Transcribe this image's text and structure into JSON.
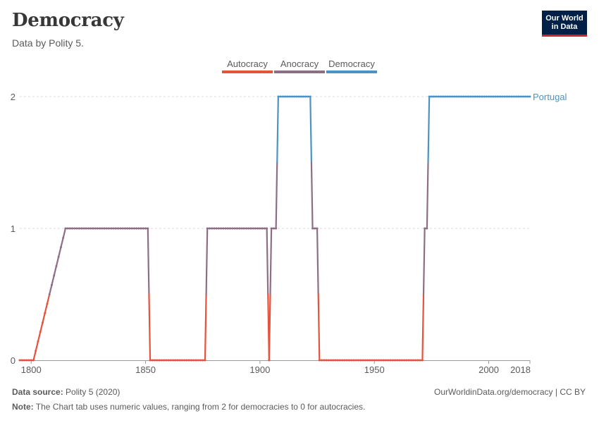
{
  "header": {
    "title": "Democracy",
    "subtitle": "Data by Polity 5."
  },
  "logo": {
    "line1": "Our World",
    "line2": "in Data"
  },
  "footer": {
    "source_label": "Data source:",
    "source_value": "Polity 5 (2020)",
    "url": "OurWorldinData.org/democracy | CC BY",
    "note_label": "Note:",
    "note_value": "The Chart tab uses numeric values, ranging from 2 for democracies to 0 for autocracies."
  },
  "colors": {
    "autocracy": "#e5533d",
    "anocracy": "#8e6e85",
    "democracy": "#4c93c4",
    "grid": "#dddddd",
    "axis_text": "#5b5b5b"
  },
  "chart_data": {
    "type": "line",
    "title": "Democracy",
    "subtitle": "Data by Polity 5.",
    "xlim": [
      1795,
      2018
    ],
    "ylim": [
      0,
      2
    ],
    "x_ticks": [
      1800,
      1850,
      1900,
      1950,
      2000,
      2018
    ],
    "y_ticks": [
      0,
      1,
      2
    ],
    "grid": "horizontal dashed",
    "legend": {
      "placement": "top-center",
      "entries": [
        {
          "label": "Autocracy",
          "color": "#e5533d",
          "range": [
            0,
            0.5
          ]
        },
        {
          "label": "Anocracy",
          "color": "#8e6e85",
          "range": [
            0.5,
            1.5
          ]
        },
        {
          "label": "Democracy",
          "color": "#4c93c4",
          "range": [
            1.5,
            2
          ]
        }
      ]
    },
    "series": [
      {
        "name": "Portugal",
        "points": [
          [
            1795,
            0
          ],
          [
            1801,
            0
          ],
          [
            1815,
            1
          ],
          [
            1851,
            1
          ],
          [
            1852,
            0
          ],
          [
            1876,
            0
          ],
          [
            1877,
            1
          ],
          [
            1903,
            1
          ],
          [
            1904,
            0
          ],
          [
            1905,
            1
          ],
          [
            1907,
            1
          ],
          [
            1908,
            2
          ],
          [
            1922,
            2
          ],
          [
            1923,
            1
          ],
          [
            1925,
            1
          ],
          [
            1926,
            0
          ],
          [
            1971,
            0
          ],
          [
            1972,
            1
          ],
          [
            1973,
            1
          ],
          [
            1974,
            2
          ],
          [
            2018,
            2
          ]
        ]
      }
    ]
  }
}
